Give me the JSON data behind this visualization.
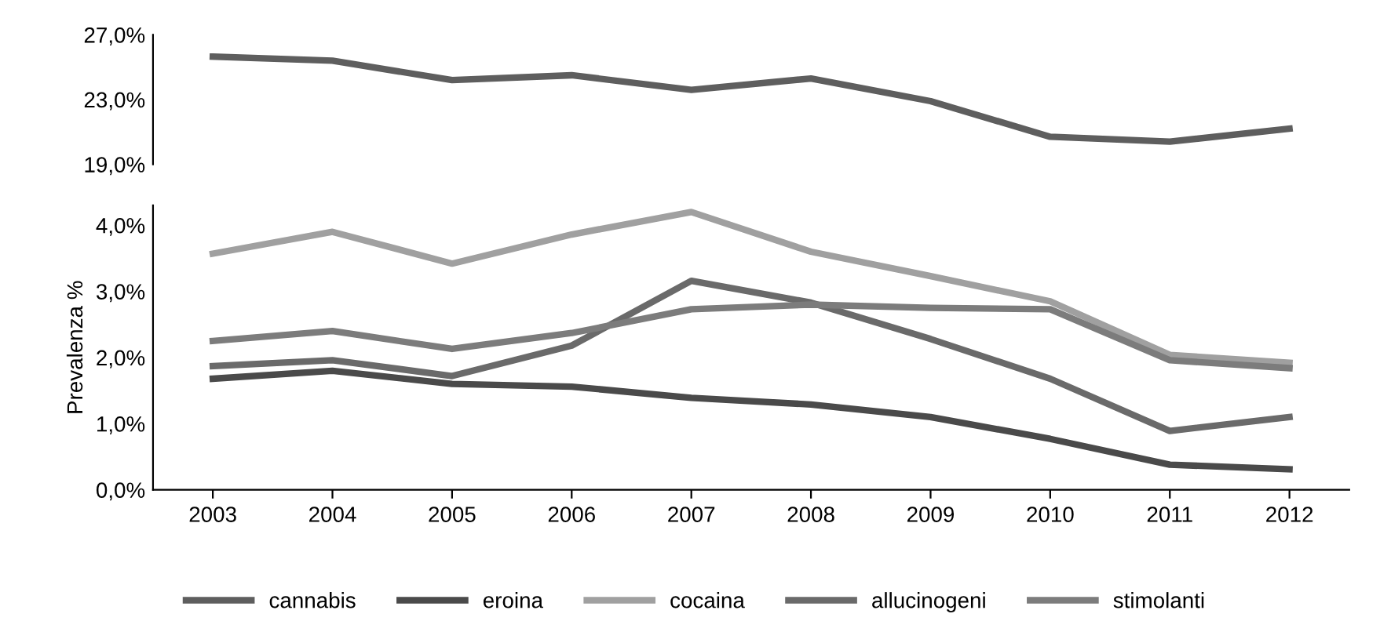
{
  "chart_data": [
    {
      "type": "line",
      "categories": [
        "2003",
        "2004",
        "2005",
        "2006",
        "2007",
        "2008",
        "2009",
        "2010",
        "2011",
        "2012"
      ],
      "tick_labels": "y",
      "ylim": [
        19,
        27
      ],
      "yticks": [
        {
          "value": 19,
          "label": "19,0%"
        },
        {
          "value": 23,
          "label": "23,0%"
        },
        {
          "value": 27,
          "label": "27,0%"
        }
      ],
      "series": [
        {
          "name": "cannabis",
          "color": "#5e5e5e",
          "values": [
            25.65,
            25.4,
            24.2,
            24.5,
            23.6,
            24.3,
            22.9,
            20.7,
            20.4,
            21.2
          ]
        }
      ]
    },
    {
      "type": "line",
      "categories": [
        "2003",
        "2004",
        "2005",
        "2006",
        "2007",
        "2008",
        "2009",
        "2010",
        "2011",
        "2012"
      ],
      "ylabel": "Prevalenza %",
      "ylim": [
        0,
        4.3
      ],
      "yticks": [
        {
          "value": 0,
          "label": "0,0%"
        },
        {
          "value": 1,
          "label": "1,0%"
        },
        {
          "value": 2,
          "label": "2,0%"
        },
        {
          "value": 3,
          "label": "3,0%"
        },
        {
          "value": 4,
          "label": "4,0%"
        }
      ],
      "legend": "bottom",
      "series": [
        {
          "name": "eroina",
          "color": "#4a4a4a",
          "values": [
            1.68,
            1.8,
            1.6,
            1.56,
            1.39,
            1.29,
            1.1,
            0.77,
            0.38,
            0.31
          ]
        },
        {
          "name": "cocaina",
          "color": "#a0a0a0",
          "values": [
            3.57,
            3.9,
            3.42,
            3.86,
            4.2,
            3.6,
            3.23,
            2.85,
            2.04,
            1.92
          ]
        },
        {
          "name": "allucinogeni",
          "color": "#6a6a6a",
          "values": [
            1.87,
            1.96,
            1.72,
            2.18,
            3.16,
            2.83,
            2.28,
            1.68,
            0.89,
            1.1
          ]
        },
        {
          "name": "stimolanti",
          "color": "#7c7c7c",
          "values": [
            2.25,
            2.4,
            2.13,
            2.37,
            2.73,
            2.8,
            2.75,
            2.73,
            1.96,
            1.84
          ]
        }
      ]
    }
  ]
}
